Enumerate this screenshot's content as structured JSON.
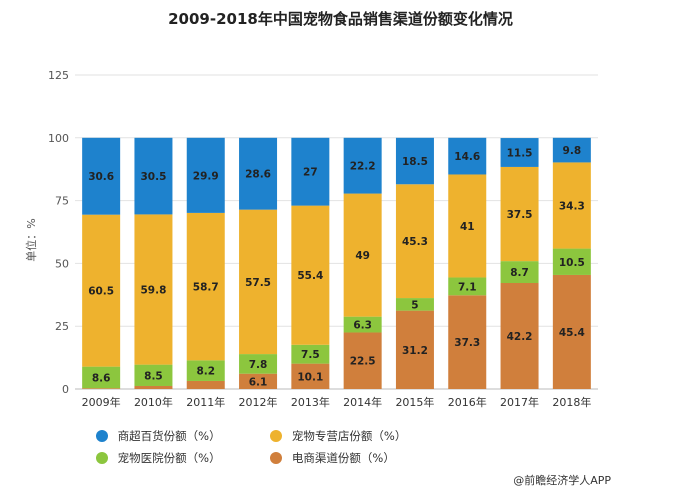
{
  "title": "2009-2018年中国宠物食品销售渠道份额变化情况",
  "source": "@前瞻经济学人APP",
  "chart_data": {
    "type": "bar",
    "stacked": true,
    "ylabel": "单位：%",
    "ylim": [
      0,
      125
    ],
    "yticks": [
      0,
      25,
      50,
      75,
      100,
      125
    ],
    "grid": true,
    "legend_position": "bottom",
    "categories": [
      "2009年",
      "2010年",
      "2011年",
      "2012年",
      "2013年",
      "2014年",
      "2015年",
      "2016年",
      "2017年",
      "2018年"
    ],
    "series": [
      {
        "name": "电商渠道份额（%）",
        "color": "#D07F3C",
        "values": [
          0.3,
          1.2,
          3.2,
          6.1,
          10.1,
          22.5,
          31.2,
          37.3,
          42.2,
          45.4
        ],
        "labels": [
          "",
          "",
          "",
          "6.1",
          "10.1",
          "22.5",
          "31.2",
          "37.3",
          "42.2",
          "45.4"
        ]
      },
      {
        "name": "宠物医院份额（%）",
        "color": "#8CC63E",
        "values": [
          8.6,
          8.5,
          8.2,
          7.8,
          7.5,
          6.3,
          5,
          7.1,
          8.7,
          10.5
        ],
        "labels": [
          "8.6",
          "8.5",
          "8.2",
          "7.8",
          "7.5",
          "6.3",
          "5",
          "7.1",
          "8.7",
          "10.5"
        ]
      },
      {
        "name": "宠物专营店份额（%）",
        "color": "#EEB22E",
        "values": [
          60.5,
          59.8,
          58.7,
          57.5,
          55.4,
          49,
          45.3,
          41,
          37.5,
          34.3
        ],
        "labels": [
          "60.5",
          "59.8",
          "58.7",
          "57.5",
          "55.4",
          "49",
          "45.3",
          "41",
          "37.5",
          "34.3"
        ]
      },
      {
        "name": "商超百货份额（%）",
        "color": "#1E82CD",
        "values": [
          30.6,
          30.5,
          29.9,
          28.6,
          27,
          22.2,
          18.5,
          14.6,
          11.5,
          9.8
        ],
        "labels": [
          "30.6",
          "30.5",
          "29.9",
          "28.6",
          "27",
          "22.2",
          "18.5",
          "14.6",
          "11.5",
          "9.8"
        ]
      }
    ]
  },
  "legend": [
    {
      "label": "商超百货份额（%）",
      "color": "#1E82CD"
    },
    {
      "label": "宠物专营店份额（%）",
      "color": "#EEB22E"
    },
    {
      "label": "宠物医院份额（%）",
      "color": "#8CC63E"
    },
    {
      "label": "电商渠道份额（%）",
      "color": "#D07F3C"
    }
  ]
}
